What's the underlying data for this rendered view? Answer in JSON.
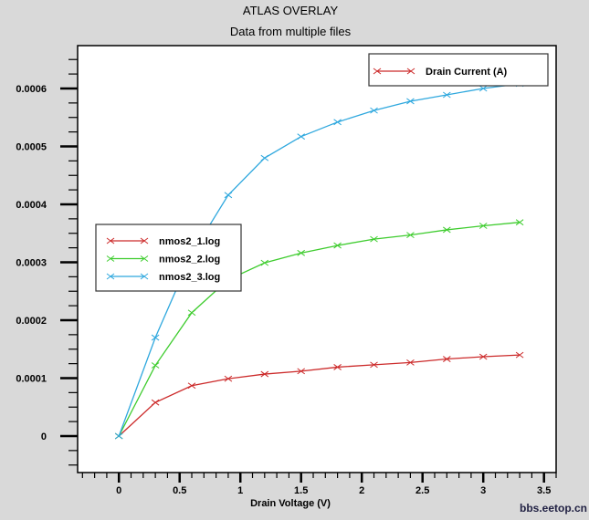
{
  "chart_data": {
    "type": "line",
    "title": "ATLAS OVERLAY",
    "subtitle": "Data from multiple files",
    "xlabel": "Drain Voltage (V)",
    "ylabel": "",
    "xlim": [
      -0.34,
      3.6
    ],
    "ylim": [
      -6.3e-05,
      0.000674
    ],
    "xticks": [
      "0",
      "0.5",
      "1",
      "1.5",
      "2",
      "2.5",
      "3",
      "3.5"
    ],
    "xtick_values": [
      0,
      0.5,
      1,
      1.5,
      2,
      2.5,
      3,
      3.5
    ],
    "yticks": [
      "0",
      "0.0001",
      "0.0002",
      "0.0003",
      "0.0004",
      "0.0005",
      "0.0006"
    ],
    "ytick_values": [
      0,
      0.0001,
      0.0002,
      0.0003,
      0.0004,
      0.0005,
      0.0006
    ],
    "grid": false,
    "quantity_legend": {
      "label": "Drain Current (A)",
      "color": "#cc2a2a",
      "placement": "top-right"
    },
    "legend_placement": "center-left",
    "x": [
      0,
      0.3,
      0.6,
      0.9,
      1.2,
      1.5,
      1.8,
      2.1,
      2.4,
      2.7,
      3.0,
      3.3
    ],
    "series": [
      {
        "name": "nmos2_1.log",
        "color": "#cc2a2a",
        "values": [
          0,
          5.8e-05,
          8.7e-05,
          9.9e-05,
          0.000107,
          0.000112,
          0.000119,
          0.000123,
          0.000127,
          0.000133,
          0.000137,
          0.00014
        ]
      },
      {
        "name": "nmos2_2.log",
        "color": "#3ecc2e",
        "values": [
          0,
          0.000122,
          0.000213,
          0.00027,
          0.000299,
          0.000316,
          0.000329,
          0.00034,
          0.000347,
          0.000356,
          0.000363,
          0.000369
        ]
      },
      {
        "name": "nmos2_3.log",
        "color": "#2fa8de",
        "values": [
          0,
          0.00017,
          0.000314,
          0.000416,
          0.00048,
          0.000517,
          0.000542,
          0.000562,
          0.000578,
          0.000589,
          0.0006,
          0.000608
        ]
      }
    ]
  },
  "watermark": "bbs.eetop.cn"
}
